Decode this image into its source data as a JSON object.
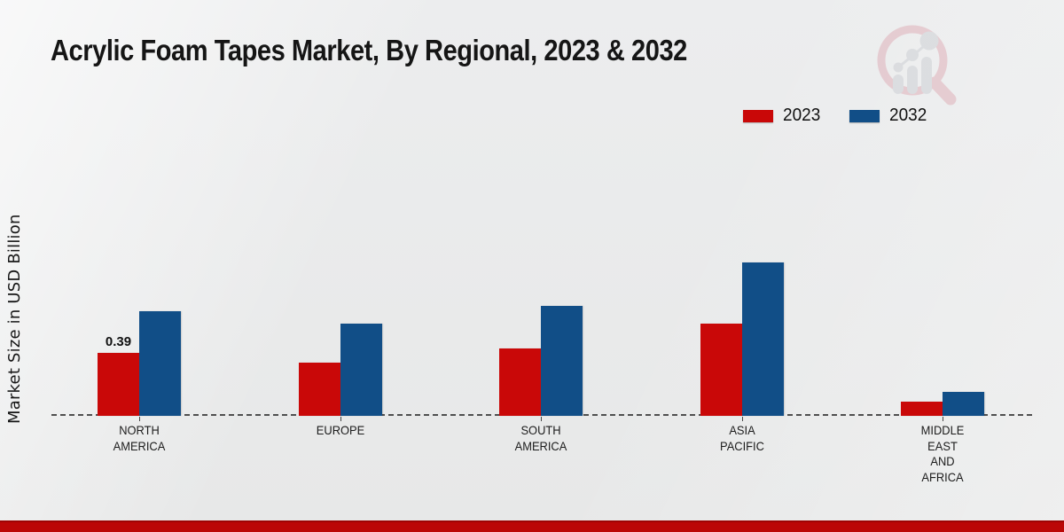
{
  "title": "Acrylic Foam Tapes Market, By Regional, 2023 & 2032",
  "y_axis_label": "Market Size in USD Billion",
  "legend": {
    "position": "top-right",
    "items": [
      {
        "label": "2023",
        "color": "#c90808"
      },
      {
        "label": "2032",
        "color": "#114e87"
      }
    ]
  },
  "logo": {
    "name": "magnifier-bar-chart-logo"
  },
  "colors": {
    "bar_2023": "#c90808",
    "bar_2032": "#114e87",
    "footer_stripe": "#bb0606",
    "axis_line": "#4f4f4f",
    "background": "#e9eaea",
    "text": "#151515"
  },
  "chart_data": {
    "type": "bar",
    "title": "Acrylic Foam Tapes Market, By Regional, 2023 & 2032",
    "xlabel": "",
    "ylabel": "Market Size in USD Billion",
    "unit": "USD Billion",
    "ylim": [
      0,
      1.0
    ],
    "grid": false,
    "axis_style": "dashed-baseline-only",
    "legend_position": "top-right",
    "categories": [
      "North America",
      "Europe",
      "South America",
      "Asia Pacific",
      "Middle East and Africa"
    ],
    "category_display": [
      [
        "NORTH",
        "AMERICA"
      ],
      [
        "EUROPE"
      ],
      [
        "SOUTH",
        "AMERICA"
      ],
      [
        "ASIA",
        "PACIFIC"
      ],
      [
        "MIDDLE",
        "EAST",
        "AND",
        "AFRICA"
      ]
    ],
    "series": [
      {
        "name": "2023",
        "color": "#c90808",
        "values": [
          0.39,
          0.33,
          0.42,
          0.57,
          0.09
        ]
      },
      {
        "name": "2032",
        "color": "#114e87",
        "values": [
          0.65,
          0.57,
          0.68,
          0.95,
          0.15
        ]
      }
    ],
    "annotations": [
      {
        "text": "0.39",
        "series": "2023",
        "category_index": 0
      }
    ]
  }
}
